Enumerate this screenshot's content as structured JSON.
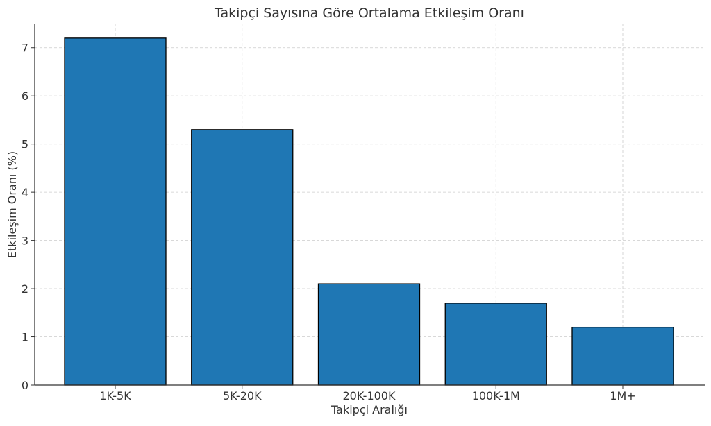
{
  "chart_data": {
    "type": "bar",
    "title": "Takipçi Sayısına Göre Ortalama Etkileşim Oranı",
    "xlabel": "Takipçi Aralığı",
    "ylabel": "Etkileşim Oranı (%)",
    "categories": [
      "1K-5K",
      "5K-20K",
      "20K-100K",
      "100K-1M",
      "1M+"
    ],
    "values": [
      7.2,
      5.3,
      2.1,
      1.7,
      1.2
    ],
    "ylim": [
      0,
      7.5
    ],
    "yticks": [
      0,
      1,
      2,
      3,
      4,
      5,
      6,
      7
    ],
    "grid": true,
    "colors": {
      "bar_fill": "#1f77b4",
      "bar_edge": "#000000",
      "grid": "#cccccc",
      "axis": "#333333"
    }
  }
}
